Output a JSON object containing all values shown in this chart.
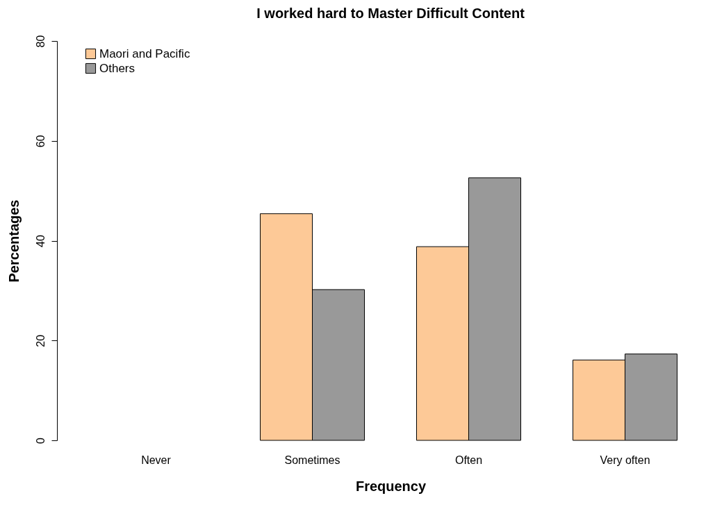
{
  "chart_data": {
    "type": "bar",
    "title": "I worked hard to Master Difficult Content",
    "xlabel": "Frequency",
    "ylabel": "Percentages",
    "categories": [
      "Never",
      "Sometimes",
      "Often",
      "Very often"
    ],
    "series": [
      {
        "name": "Maori and Pacific",
        "color": "#fdc997",
        "values": [
          0,
          45.4,
          38.8,
          16.1
        ]
      },
      {
        "name": "Others",
        "color": "#999999",
        "values": [
          0,
          30.2,
          52.6,
          17.3
        ]
      }
    ],
    "ylim": [
      0,
      80
    ],
    "yticks": [
      0,
      20,
      40,
      60,
      80
    ],
    "legend": "top left"
  }
}
